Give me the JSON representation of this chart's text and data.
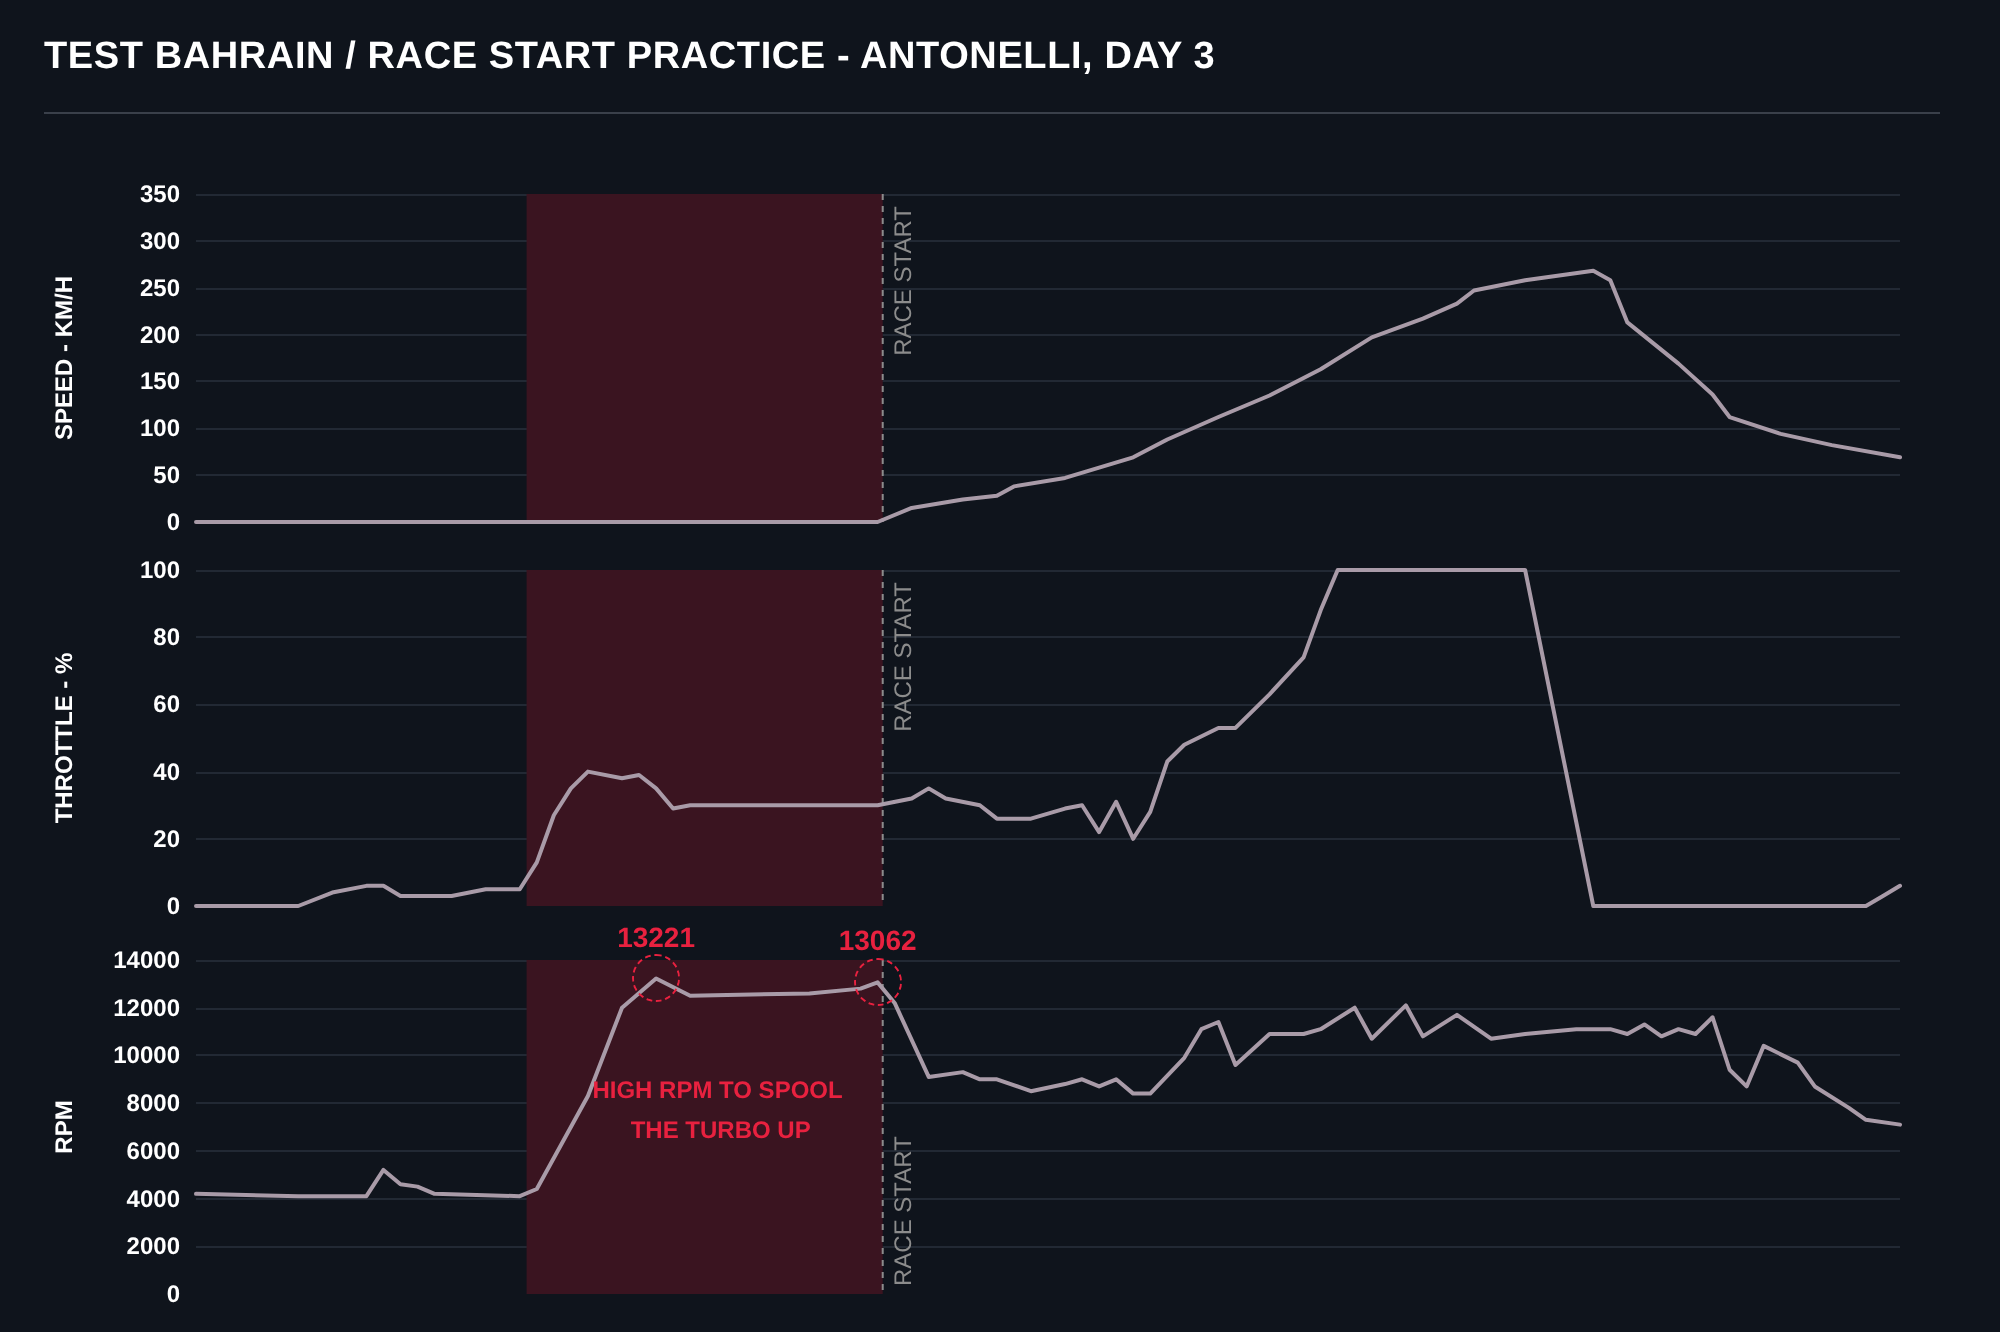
{
  "chart_data": [
    {
      "type": "line",
      "title": "TEST BAHRAIN / RACE START PRACTICE - ANTONELLI, DAY 3",
      "ylabel": "SPEED - KM/H",
      "ylim": [
        0,
        350
      ],
      "yticks": [
        0,
        50,
        100,
        150,
        200,
        250,
        300,
        350
      ],
      "tick_labels": "y",
      "grid": "y",
      "marker": "none",
      "line_style": "solid",
      "categories": [
        null,
        null,
        null,
        null,
        null,
        null,
        null,
        null,
        null,
        null,
        null,
        null,
        null,
        null,
        null,
        null,
        null,
        null,
        null,
        null,
        null,
        null,
        null,
        null,
        null,
        null,
        null,
        null,
        null,
        null,
        null,
        null,
        null,
        null,
        null,
        null,
        null,
        null,
        null,
        null,
        null,
        null,
        null,
        null,
        null,
        null,
        null,
        null,
        null,
        null,
        null,
        null,
        null,
        null,
        null,
        null,
        null,
        null,
        null,
        null,
        null,
        null,
        null,
        null,
        null,
        null,
        null,
        null,
        null,
        null,
        null,
        null,
        null,
        null,
        null,
        null,
        null,
        null,
        null,
        null,
        null,
        null,
        null,
        null,
        null,
        null,
        null,
        null,
        null,
        null,
        null,
        null,
        null,
        null,
        null,
        null,
        null,
        null,
        null,
        null,
        null
      ],
      "series": [
        {
          "color": "#a99ba8",
          "values": [
            0,
            0,
            0,
            0,
            0,
            0,
            0,
            0,
            0,
            0,
            0,
            0,
            0,
            0,
            0,
            0,
            0,
            0,
            0,
            0,
            0,
            0,
            0,
            0,
            0,
            0,
            0,
            0,
            0,
            0,
            0,
            0,
            0,
            0,
            0,
            0,
            0,
            0,
            0,
            0,
            0,
            null,
            15,
            null,
            null,
            24,
            null,
            28,
            38,
            null,
            null,
            47,
            null,
            58,
            null,
            69,
            null,
            88,
            null,
            null,
            112,
            null,
            null,
            135,
            null,
            null,
            163,
            null,
            null,
            197,
            null,
            null,
            217,
            null,
            233,
            247,
            null,
            null,
            258,
            null,
            null,
            null,
            268,
            258,
            213,
            null,
            null,
            169,
            null,
            136,
            112,
            null,
            null,
            94,
            null,
            null,
            82,
            null,
            null,
            null,
            69
          ]
        }
      ],
      "annotations": [
        "RACE START"
      ]
    },
    {
      "type": "line",
      "ylabel": "THROTTLE - %",
      "ylim": [
        0,
        100
      ],
      "yticks": [
        0,
        20,
        40,
        60,
        80,
        100
      ],
      "tick_labels": "y",
      "grid": "y",
      "marker": "none",
      "line_style": "solid",
      "categories": [
        null,
        null,
        null,
        null,
        null,
        null,
        null,
        null,
        null,
        null,
        null,
        null,
        null,
        null,
        null,
        null,
        null,
        null,
        null,
        null,
        null,
        null,
        null,
        null,
        null,
        null,
        null,
        null,
        null,
        null,
        null,
        null,
        null,
        null,
        null,
        null,
        null,
        null,
        null,
        null,
        null,
        null,
        null,
        null,
        null,
        null,
        null,
        null,
        null,
        null,
        null,
        null,
        null,
        null,
        null,
        null,
        null,
        null,
        null,
        null,
        null,
        null,
        null,
        null,
        null,
        null,
        null,
        null,
        null,
        null,
        null,
        null,
        null,
        null,
        null,
        null,
        null,
        null,
        null,
        null,
        null,
        null,
        null,
        null,
        null,
        null,
        null,
        null,
        null,
        null,
        null,
        null,
        null,
        null,
        null,
        null,
        null,
        null,
        null,
        null,
        null
      ],
      "series": [
        {
          "color": "#a99ba8",
          "values": [
            0,
            0,
            0,
            0,
            0,
            0,
            0,
            null,
            4,
            null,
            6,
            6,
            3,
            null,
            null,
            3,
            null,
            5,
            null,
            5,
            13,
            27,
            35,
            40,
            null,
            38,
            39,
            35,
            29,
            30,
            null,
            null,
            null,
            null,
            null,
            null,
            null,
            null,
            null,
            null,
            30,
            null,
            32,
            35,
            32,
            null,
            30,
            26,
            null,
            26,
            null,
            29,
            30,
            22,
            31,
            20,
            28,
            43,
            48,
            null,
            53,
            53,
            null,
            63,
            null,
            74,
            88,
            100,
            null,
            null,
            null,
            null,
            null,
            null,
            null,
            null,
            null,
            null,
            100,
            null,
            null,
            null,
            0,
            0,
            0,
            0,
            0,
            0,
            0,
            0,
            0,
            0,
            0,
            0,
            0,
            0,
            0,
            0,
            0,
            3,
            6
          ]
        }
      ],
      "annotations": [
        "RACE START"
      ]
    },
    {
      "type": "line",
      "ylabel": "RPM",
      "ylim": [
        0,
        14000
      ],
      "yticks": [
        0,
        2000,
        4000,
        6000,
        8000,
        10000,
        12000,
        14000
      ],
      "tick_labels": "y",
      "grid": "y",
      "marker": "none",
      "line_style": "solid",
      "categories": [
        null,
        null,
        null,
        null,
        null,
        null,
        null,
        null,
        null,
        null,
        null,
        null,
        null,
        null,
        null,
        null,
        null,
        null,
        null,
        null,
        null,
        null,
        null,
        null,
        null,
        null,
        null,
        null,
        null,
        null,
        null,
        null,
        null,
        null,
        null,
        null,
        null,
        null,
        null,
        null,
        null,
        null,
        null,
        null,
        null,
        null,
        null,
        null,
        null,
        null,
        null,
        null,
        null,
        null,
        null,
        null,
        null,
        null,
        null,
        null,
        null,
        null,
        null,
        null,
        null,
        null,
        null,
        null,
        null,
        null,
        null,
        null,
        null,
        null,
        null,
        null,
        null,
        null,
        null,
        null,
        null,
        null,
        null,
        null,
        null,
        null,
        null,
        null,
        null,
        null,
        null,
        null,
        null,
        null,
        null,
        null,
        null,
        null,
        null,
        null,
        null
      ],
      "series": [
        {
          "color": "#a99ba8",
          "values": [
            4200,
            null,
            null,
            null,
            null,
            null,
            4100,
            null,
            null,
            null,
            4100,
            5200,
            4600,
            4500,
            4200,
            null,
            null,
            null,
            null,
            4100,
            4400,
            null,
            null,
            8300,
            null,
            12000,
            null,
            13221,
            null,
            12500,
            null,
            null,
            null,
            null,
            null,
            null,
            12600,
            null,
            null,
            12800,
            13062,
            12200,
            null,
            9100,
            null,
            9300,
            9000,
            9000,
            null,
            8500,
            null,
            8800,
            9000,
            8700,
            9000,
            8400,
            8400,
            null,
            9900,
            11100,
            11400,
            9600,
            null,
            10900,
            null,
            10900,
            11100,
            null,
            12000,
            10700,
            null,
            12100,
            10800,
            null,
            11700,
            null,
            10700,
            null,
            10900,
            null,
            null,
            11100,
            11100,
            11100,
            10900,
            11300,
            10800,
            11100,
            10900,
            11600,
            9400,
            8700,
            10400,
            null,
            9700,
            8700,
            null,
            7800,
            7300,
            null,
            7100
          ],
          "value_labels": [
            null,
            null,
            null,
            null,
            null,
            null,
            null,
            null,
            null,
            null,
            null,
            null,
            null,
            null,
            null,
            null,
            null,
            null,
            null,
            null,
            null,
            null,
            null,
            null,
            null,
            null,
            null,
            "13221",
            null,
            null,
            null,
            null,
            null,
            null,
            null,
            null,
            null,
            null,
            null,
            null,
            "13062",
            null,
            null,
            null,
            null,
            null,
            null,
            null,
            null,
            null,
            null,
            null,
            null,
            null,
            null,
            null,
            null,
            null,
            null,
            null,
            null,
            null,
            null,
            null,
            null,
            null,
            null,
            null,
            null,
            null,
            null,
            null,
            null,
            null,
            null,
            null,
            null,
            null,
            null,
            null,
            null,
            null,
            null,
            null,
            null,
            null,
            null,
            null,
            null,
            null,
            null,
            null,
            null,
            null,
            null,
            null,
            null,
            null,
            null,
            null,
            null
          ]
        }
      ],
      "annotations": [
        "RACE START",
        "HIGH RPM TO SPOOL THE TURBO UP"
      ]
    }
  ]
}
